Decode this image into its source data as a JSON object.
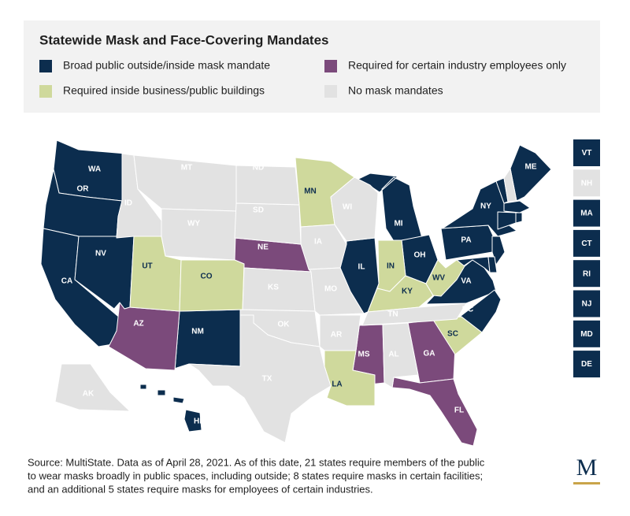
{
  "title": "Statewide Mask and Face-Covering Mandates",
  "legend": [
    {
      "label": "Broad public outside/inside mask mandate",
      "color": "#0c2d4e",
      "label_color": "#ffffff",
      "states": [
        "WA",
        "OR",
        "CA",
        "NV",
        "NM",
        "HI",
        "IL",
        "MI",
        "OH",
        "PA",
        "NY",
        "ME",
        "VA",
        "NC",
        "VT",
        "MA",
        "CT",
        "RI",
        "NJ",
        "MD",
        "DE"
      ]
    },
    {
      "label": "Required for certain industry employees only",
      "color": "#7b4a7b",
      "label_color": "#ffffff",
      "states": [
        "AZ",
        "NE",
        "MS",
        "GA",
        "FL"
      ]
    },
    {
      "label": "Required inside business/public buildings",
      "color": "#cfd99c",
      "label_color": "#0c2d4e",
      "states": [
        "UT",
        "CO",
        "MN",
        "IN",
        "KY",
        "WV",
        "SC",
        "LA"
      ]
    },
    {
      "label": "No mask mandates",
      "color": "#e2e2e2",
      "label_color": "#ffffff",
      "states": [
        "NH",
        "ID",
        "MT",
        "WY",
        "ND",
        "SD",
        "KS",
        "OK",
        "TX",
        "IA",
        "MO",
        "AR",
        "WI",
        "TN",
        "AL",
        "AK"
      ]
    }
  ],
  "side_boxes": [
    "VT",
    "NH",
    "MA",
    "CT",
    "RI",
    "NJ",
    "MD",
    "DE"
  ],
  "source_lines": [
    "Source: MultiState. Data as of April 28, 2021. As of this date, 21 states require members of the public",
    "to wear masks broadly in public spaces, including outside; 8 states require masks in certain facilities;",
    "and an additional 5 states require masks for employees of certain industries."
  ],
  "logo": "M"
}
